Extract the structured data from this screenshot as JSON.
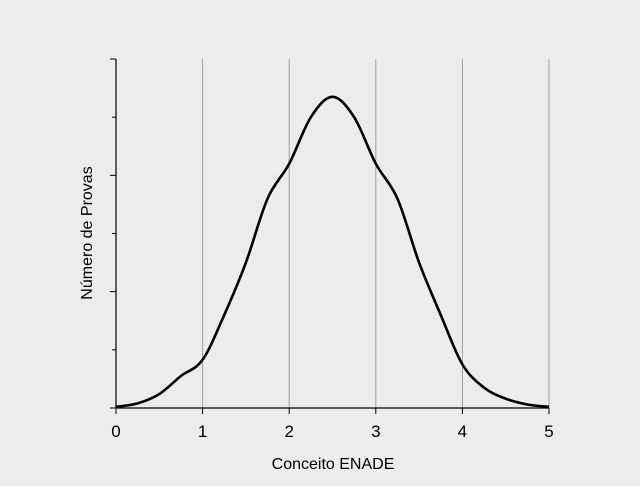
{
  "chart_data": {
    "type": "line",
    "xlabel": "Conceito ENADE",
    "ylabel": "Número de Provas",
    "xlim": [
      0,
      5
    ],
    "ylim": [
      0,
      6
    ],
    "x_ticks": [
      "0",
      "1",
      "2",
      "3",
      "4",
      "5"
    ],
    "y_ticks_labeled": false,
    "grid": "vertical",
    "series": [
      {
        "x": [
          0,
          0.25,
          0.5,
          0.75,
          1.0,
          1.25,
          1.5,
          1.75,
          2.0,
          2.25,
          2.5,
          2.75,
          3.0,
          3.25,
          3.5,
          3.75,
          4.0,
          4.25,
          4.5,
          4.75,
          5.0
        ],
        "y": [
          0.02,
          0.08,
          0.24,
          0.55,
          0.83,
          1.6,
          2.5,
          3.6,
          4.2,
          5.0,
          5.35,
          5.0,
          4.2,
          3.6,
          2.5,
          1.6,
          0.75,
          0.35,
          0.16,
          0.06,
          0.02
        ]
      }
    ]
  },
  "colors": {
    "background": "#ececec",
    "grid": "#a0a0a0",
    "axis": "#000000",
    "curve": "#000000"
  }
}
